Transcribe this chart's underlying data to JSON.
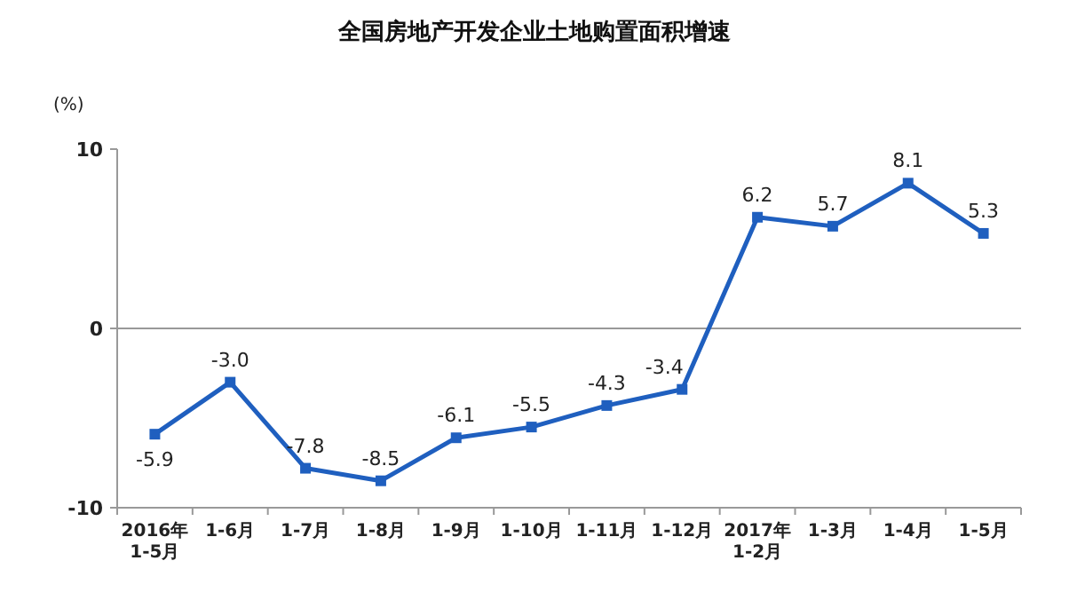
{
  "chart_data": {
    "type": "line",
    "title": "全国房地产开发企业土地购置面积增速",
    "ylabel": "(%)",
    "categories": [
      "2016年1-5月",
      "1-6月",
      "1-7月",
      "1-8月",
      "1-9月",
      "1-10月",
      "1-11月",
      "1-12月",
      "2017年1-2月",
      "1-3月",
      "1-4月",
      "1-5月"
    ],
    "series": [
      {
        "color": "#1f5fbf",
        "values": [
          -5.9,
          -3.0,
          -7.8,
          -8.5,
          -6.1,
          -5.5,
          -4.3,
          -3.4,
          6.2,
          5.7,
          8.1,
          5.3
        ],
        "value_labels": [
          "-5.9",
          "-3.0",
          "-7.8",
          "-8.5",
          "-6.1",
          "-5.5",
          "-4.3",
          "-3.4",
          "6.2",
          "5.7",
          "8.1",
          "5.3"
        ]
      }
    ],
    "ylim": [
      -10,
      10
    ],
    "yticks": [
      -10,
      0,
      10
    ],
    "marker": "square",
    "ref_lines": [
      {
        "axis": "y",
        "value": 0,
        "color": "#999999"
      }
    ]
  }
}
